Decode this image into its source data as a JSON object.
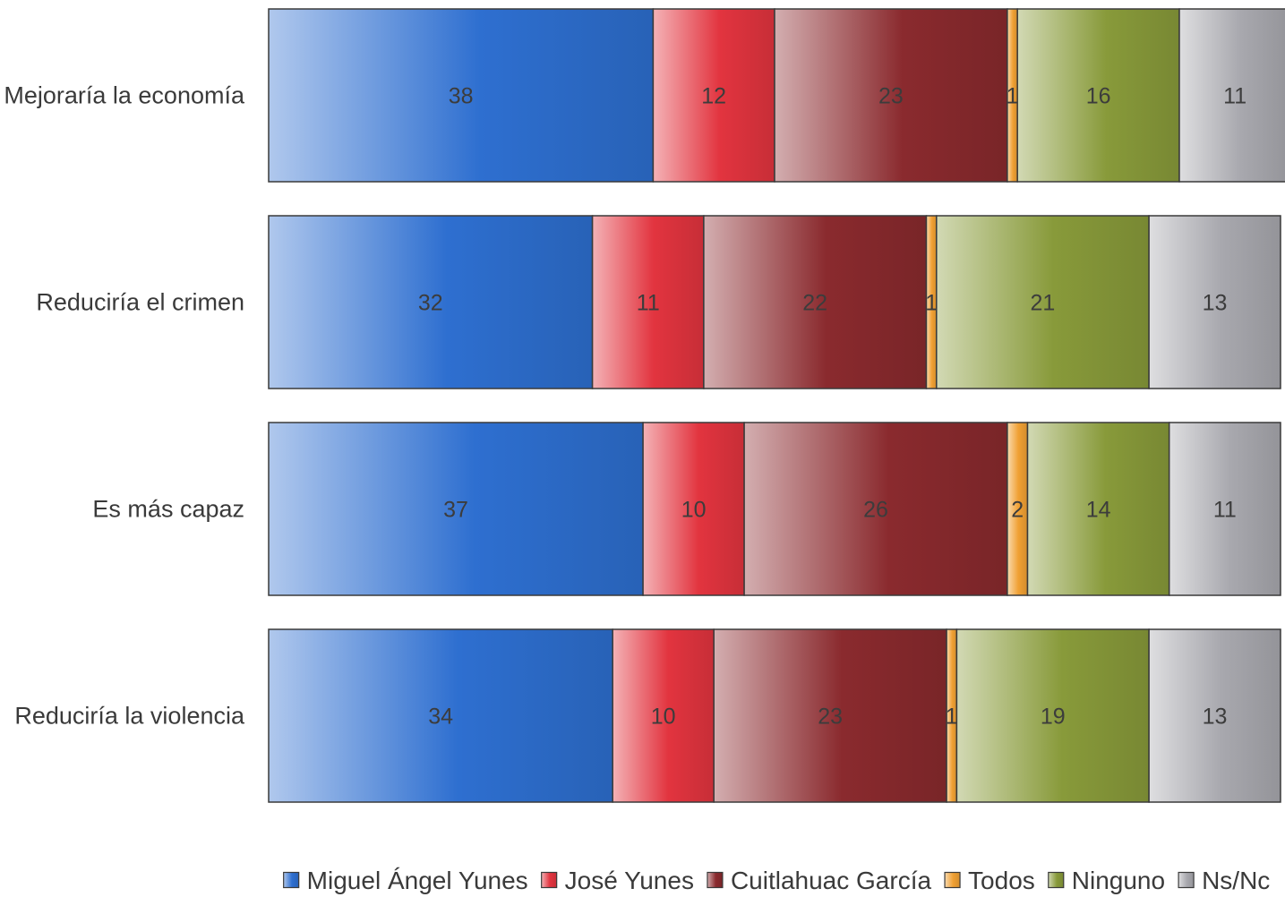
{
  "chart_data": {
    "type": "bar",
    "orientation": "horizontal",
    "stacked": true,
    "categories": [
      "Mejoraría la economía",
      "Reduciría el crimen",
      "Es más capaz",
      "Reduciría la violencia"
    ],
    "series": [
      {
        "name": "Miguel Ángel Yunes",
        "values": [
          38,
          32,
          37,
          34
        ],
        "color": "#2e6fd0"
      },
      {
        "name": "José Yunes",
        "values": [
          12,
          11,
          10,
          10
        ],
        "color": "#e2343f"
      },
      {
        "name": "Cuitlahuac García",
        "values": [
          23,
          22,
          26,
          23
        ],
        "color": "#8a2a2e"
      },
      {
        "name": "Todos",
        "values": [
          1,
          1,
          2,
          1
        ],
        "color": "#f0a033"
      },
      {
        "name": "Ninguno",
        "values": [
          16,
          21,
          14,
          19
        ],
        "color": "#889a3a"
      },
      {
        "name": "Ns/Nc",
        "values": [
          11,
          13,
          11,
          13
        ],
        "color": "#a8a8ae"
      }
    ],
    "xlim": [
      0,
      101
    ],
    "grid": false,
    "legend_position": "bottom"
  }
}
